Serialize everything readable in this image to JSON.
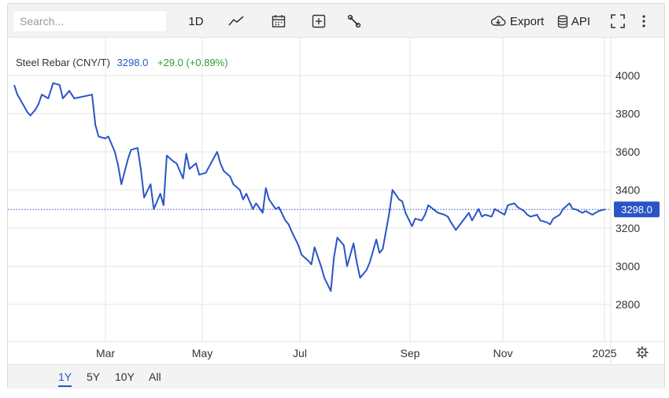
{
  "toolbar": {
    "search_placeholder": "Search...",
    "interval_label": "1D",
    "export_label": "Export",
    "api_label": "API"
  },
  "legend": {
    "name": "Steel Rebar (CNY/T)",
    "last": "3298.0",
    "change": "+29.0 (+0.89%)"
  },
  "price_tag": "3298.0",
  "ranges": [
    "1Y",
    "5Y",
    "10Y",
    "All"
  ],
  "active_range": "1Y",
  "colors": {
    "line": "#2b55c6",
    "change": "#2e9b3a",
    "grid": "#e6e6e6"
  },
  "chart_data": {
    "type": "line",
    "title": "Steel Rebar (CNY/T)",
    "x_tick_labels": [
      "Mar",
      "May",
      "Jul",
      "Sep",
      "Nov",
      "2025"
    ],
    "y_tick_labels": [
      "4000",
      "3800",
      "3600",
      "3400",
      "3200",
      "3000",
      "2800"
    ],
    "ylim": [
      2600,
      4100
    ],
    "grid": true,
    "last_value": 3298.0,
    "series": [
      {
        "x": [
          "2024-01-02",
          "2024-01-04",
          "2024-01-08",
          "2024-01-10",
          "2024-01-12",
          "2024-01-15",
          "2024-01-17",
          "2024-01-19",
          "2024-01-23",
          "2024-01-26",
          "2024-01-30",
          "2024-02-01",
          "2024-02-05",
          "2024-02-08",
          "2024-02-19",
          "2024-02-21",
          "2024-02-23",
          "2024-02-27",
          "2024-02-29",
          "2024-03-04",
          "2024-03-06",
          "2024-03-08",
          "2024-03-12",
          "2024-03-14",
          "2024-03-18",
          "2024-03-20",
          "2024-03-22",
          "2024-03-26",
          "2024-03-28",
          "2024-04-01",
          "2024-04-03",
          "2024-04-05",
          "2024-04-09",
          "2024-04-11",
          "2024-04-15",
          "2024-04-17",
          "2024-04-19",
          "2024-04-23",
          "2024-04-25",
          "2024-04-29",
          "2024-05-06",
          "2024-05-08",
          "2024-05-10",
          "2024-05-14",
          "2024-05-16",
          "2024-05-20",
          "2024-05-22",
          "2024-05-24",
          "2024-05-28",
          "2024-05-30",
          "2024-06-03",
          "2024-06-05",
          "2024-06-07",
          "2024-06-11",
          "2024-06-13",
          "2024-06-17",
          "2024-06-19",
          "2024-06-21",
          "2024-06-25",
          "2024-06-27",
          "2024-07-01",
          "2024-07-03",
          "2024-07-05",
          "2024-07-09",
          "2024-07-11",
          "2024-07-15",
          "2024-07-17",
          "2024-07-19",
          "2024-07-23",
          "2024-07-25",
          "2024-07-29",
          "2024-07-31",
          "2024-08-02",
          "2024-08-06",
          "2024-08-08",
          "2024-08-12",
          "2024-08-14",
          "2024-08-16",
          "2024-08-20",
          "2024-08-22",
          "2024-08-26",
          "2024-08-28",
          "2024-08-30",
          "2024-09-03",
          "2024-09-05",
          "2024-09-09",
          "2024-09-11",
          "2024-09-13",
          "2024-09-19",
          "2024-09-23",
          "2024-09-25",
          "2024-09-27",
          "2024-09-30",
          "2024-10-08",
          "2024-10-10",
          "2024-10-14",
          "2024-10-16",
          "2024-10-18",
          "2024-10-22",
          "2024-10-24",
          "2024-10-28",
          "2024-10-30",
          "2024-11-01",
          "2024-11-05",
          "2024-11-07",
          "2024-11-11",
          "2024-11-13",
          "2024-11-15",
          "2024-11-19",
          "2024-11-21",
          "2024-11-25",
          "2024-11-27",
          "2024-11-29",
          "2024-12-03",
          "2024-12-05",
          "2024-12-09",
          "2024-12-11",
          "2024-12-13",
          "2024-12-17",
          "2024-12-19",
          "2024-12-23",
          "2024-12-25",
          "2024-12-27",
          "2024-12-31"
        ],
        "values": [
          3950,
          3900,
          3840,
          3810,
          3790,
          3820,
          3850,
          3900,
          3880,
          3960,
          3950,
          3880,
          3920,
          3880,
          3900,
          3740,
          3680,
          3670,
          3680,
          3600,
          3530,
          3430,
          3560,
          3610,
          3620,
          3510,
          3360,
          3430,
          3300,
          3380,
          3320,
          3580,
          3550,
          3540,
          3460,
          3590,
          3510,
          3540,
          3480,
          3490,
          3600,
          3540,
          3500,
          3470,
          3430,
          3400,
          3350,
          3380,
          3300,
          3330,
          3280,
          3410,
          3350,
          3300,
          3310,
          3240,
          3220,
          3180,
          3110,
          3060,
          3030,
          3010,
          3100,
          3000,
          2940,
          2870,
          3050,
          3150,
          3110,
          3000,
          3120,
          3020,
          2940,
          2980,
          3020,
          3140,
          3070,
          3090,
          3280,
          3400,
          3350,
          3340,
          3280,
          3210,
          3250,
          3240,
          3270,
          3320,
          3280,
          3270,
          3260,
          3230,
          3190,
          3280,
          3240,
          3300,
          3260,
          3270,
          3260,
          3300,
          3280,
          3270,
          3320,
          3330,
          3310,
          3290,
          3270,
          3260,
          3270,
          3240,
          3230,
          3220,
          3250,
          3270,
          3300,
          3330,
          3300,
          3298,
          3280,
          3290,
          3270,
          3280,
          3290,
          3298
        ]
      }
    ]
  }
}
